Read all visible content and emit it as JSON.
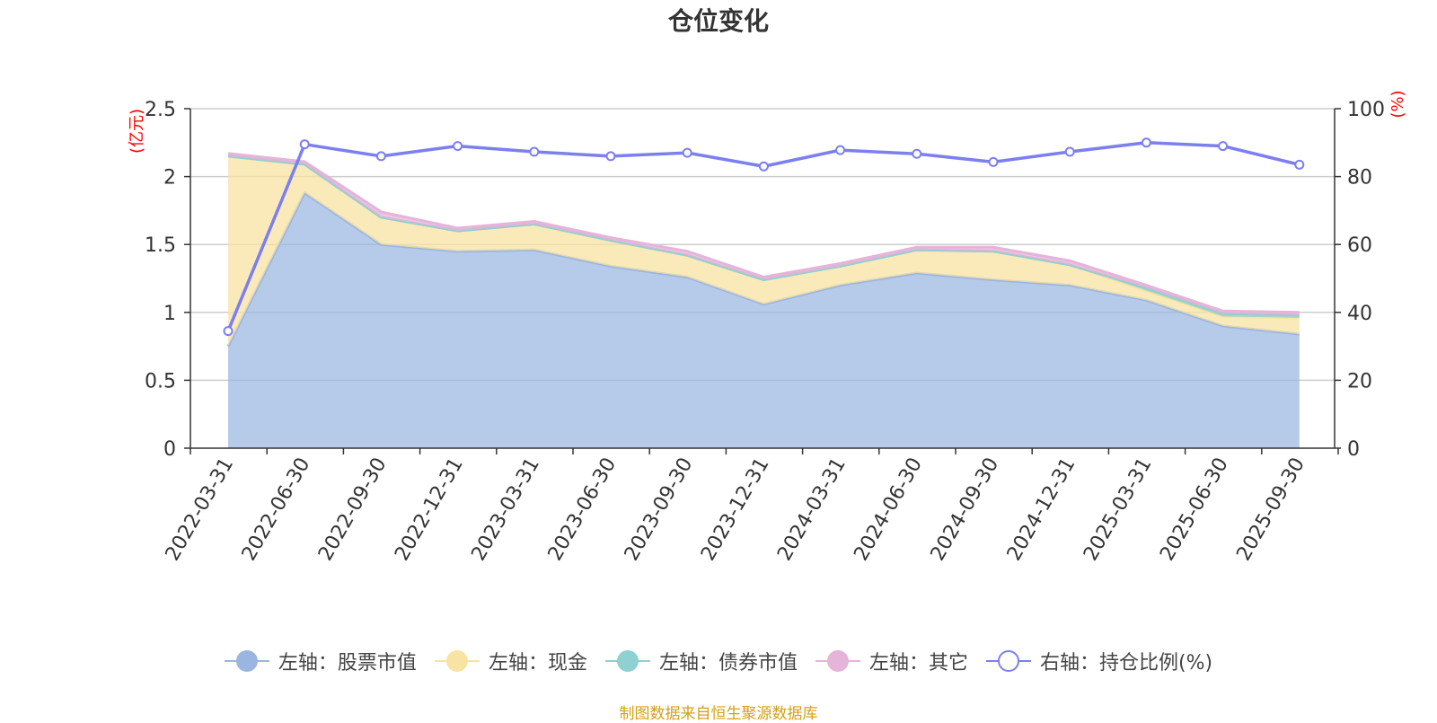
{
  "title": "仓位变化",
  "source": "制图数据来自恒生聚源数据库",
  "colors": {
    "stock": "#9ab5e0",
    "cash": "#f8e3a3",
    "bond": "#8fd0d0",
    "other": "#e6b3d9",
    "ratio": "#7b7ff0",
    "axis_unit": "#ff0000"
  },
  "legend": [
    {
      "key": "stock",
      "label": "左轴：股票市值",
      "hollow": false
    },
    {
      "key": "cash",
      "label": "左轴：现金",
      "hollow": false
    },
    {
      "key": "bond",
      "label": "左轴：债券市值",
      "hollow": false
    },
    {
      "key": "other",
      "label": "左轴：其它",
      "hollow": false
    },
    {
      "key": "ratio",
      "label": "右轴：持仓比例(%)",
      "hollow": true
    }
  ],
  "chart_data": {
    "type": "area",
    "title": "仓位变化",
    "categories": [
      "2022-03-31",
      "2022-06-30",
      "2022-09-30",
      "2022-12-31",
      "2023-03-31",
      "2023-06-30",
      "2023-09-30",
      "2023-12-31",
      "2024-03-31",
      "2024-06-30",
      "2024-09-30",
      "2024-12-31",
      "2025-03-31",
      "2025-06-30",
      "2025-09-30"
    ],
    "left_axis": {
      "label": "(亿元)",
      "ylim": [
        0,
        2.5
      ],
      "ticks": [
        "0",
        "0.5",
        "1",
        "1.5",
        "2",
        "2.5"
      ]
    },
    "right_axis": {
      "label": "(%)",
      "ylim": [
        0,
        100
      ],
      "ticks": [
        "0",
        "20",
        "40",
        "60",
        "80",
        "100"
      ]
    },
    "stacked_series": [
      {
        "key": "stock",
        "name": "左轴：股票市值",
        "values": [
          0.75,
          1.88,
          1.5,
          1.45,
          1.46,
          1.34,
          1.26,
          1.06,
          1.2,
          1.29,
          1.24,
          1.2,
          1.09,
          0.9,
          0.84
        ]
      },
      {
        "key": "cash",
        "name": "左轴：现金",
        "values": [
          1.4,
          0.21,
          0.2,
          0.15,
          0.19,
          0.19,
          0.16,
          0.18,
          0.14,
          0.17,
          0.21,
          0.15,
          0.07,
          0.07,
          0.12
        ]
      },
      {
        "key": "bond",
        "name": "左轴：债券市值",
        "values": [
          0,
          0,
          0,
          0,
          0,
          0,
          0,
          0,
          0,
          0,
          0,
          0,
          0.02,
          0.02,
          0.02
        ]
      },
      {
        "key": "other",
        "name": "左轴：其它",
        "values": [
          0.02,
          0.02,
          0.04,
          0.02,
          0.02,
          0.02,
          0.03,
          0.02,
          0.02,
          0.02,
          0.03,
          0.03,
          0.02,
          0.02,
          0.02
        ]
      }
    ],
    "line_series": {
      "key": "ratio",
      "name": "右轴：持仓比例(%)",
      "values": [
        34.5,
        89.5,
        86.0,
        89.0,
        87.3,
        86.0,
        87.0,
        83.0,
        87.8,
        86.7,
        84.3,
        87.3,
        90.0,
        89.0,
        83.5
      ]
    }
  }
}
